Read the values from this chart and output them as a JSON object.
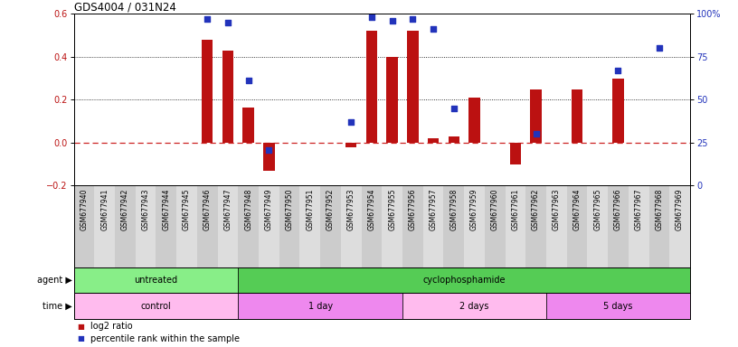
{
  "title": "GDS4004 / 031N24",
  "samples": [
    "GSM677940",
    "GSM677941",
    "GSM677942",
    "GSM677943",
    "GSM677944",
    "GSM677945",
    "GSM677946",
    "GSM677947",
    "GSM677948",
    "GSM677949",
    "GSM677950",
    "GSM677951",
    "GSM677952",
    "GSM677953",
    "GSM677954",
    "GSM677955",
    "GSM677956",
    "GSM677957",
    "GSM677958",
    "GSM677959",
    "GSM677960",
    "GSM677961",
    "GSM677962",
    "GSM677963",
    "GSM677964",
    "GSM677965",
    "GSM677966",
    "GSM677967",
    "GSM677968",
    "GSM677969"
  ],
  "log2_ratio": [
    0.0,
    0.0,
    0.0,
    0.0,
    0.0,
    0.0,
    0.48,
    0.43,
    0.165,
    -0.13,
    0.0,
    0.0,
    0.0,
    -0.02,
    0.52,
    0.4,
    0.52,
    0.02,
    0.03,
    0.21,
    0.0,
    -0.1,
    0.25,
    0.0,
    0.25,
    0.0,
    0.3,
    0.0,
    0.0,
    0.0
  ],
  "percentile": [
    null,
    null,
    null,
    null,
    null,
    null,
    97,
    95,
    61,
    21,
    null,
    null,
    null,
    37,
    98,
    96,
    97,
    91,
    45,
    null,
    null,
    null,
    30,
    null,
    null,
    null,
    67,
    null,
    80,
    null
  ],
  "ylim_left": [
    -0.2,
    0.6
  ],
  "ylim_right": [
    0,
    100
  ],
  "yticks_left": [
    -0.2,
    0.0,
    0.2,
    0.4,
    0.6
  ],
  "yticks_right": [
    0,
    25,
    50,
    75,
    100
  ],
  "bar_color": "#bb1111",
  "dot_color": "#2233bb",
  "zero_line_color": "#cc2222",
  "agent_groups": [
    {
      "label": "untreated",
      "start": 0,
      "end": 8,
      "color": "#88ee88"
    },
    {
      "label": "cyclophosphamide",
      "start": 8,
      "end": 30,
      "color": "#55cc55"
    }
  ],
  "time_groups": [
    {
      "label": "control",
      "start": 0,
      "end": 8,
      "color": "#ffbbee"
    },
    {
      "label": "1 day",
      "start": 8,
      "end": 16,
      "color": "#ee88ee"
    },
    {
      "label": "2 days",
      "start": 16,
      "end": 23,
      "color": "#ffbbee"
    },
    {
      "label": "5 days",
      "start": 23,
      "end": 30,
      "color": "#ee88ee"
    }
  ]
}
